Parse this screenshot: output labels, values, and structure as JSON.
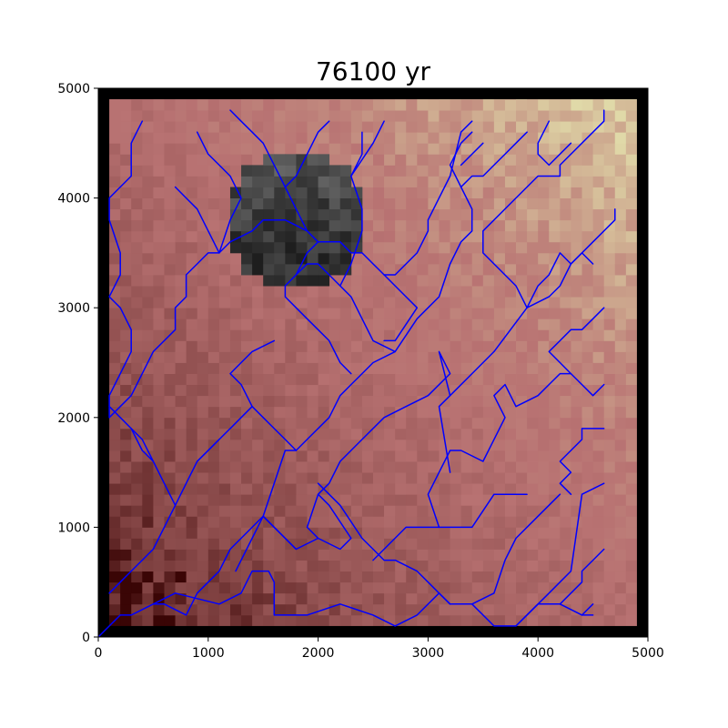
{
  "chart_data": {
    "type": "heatmap",
    "title": "76100 yr",
    "xlabel": "",
    "ylabel": "",
    "xlim": [
      0,
      5000
    ],
    "ylim": [
      0,
      5000
    ],
    "x_ticks": [
      "0",
      "1000",
      "2000",
      "3000",
      "4000",
      "5000"
    ],
    "y_ticks": [
      "0",
      "1000",
      "2000",
      "3000",
      "4000",
      "5000"
    ],
    "grid": false,
    "cell_size": 100,
    "boundary_color": "#000000",
    "stream_color": "#0000ff",
    "terrain_colors": {
      "low": "#3a0505",
      "mid": "#b87272",
      "high": "#e0d9a8"
    },
    "lake": {
      "color_light": "#6e6e6e",
      "color_dark": "#1e1e1e",
      "center": [
        1800,
        3800
      ],
      "radius": 650
    },
    "streams": [
      [
        [
          0,
          0
        ],
        [
          200,
          200
        ],
        [
          300,
          200
        ],
        [
          500,
          300
        ],
        [
          700,
          400
        ],
        [
          900,
          350
        ],
        [
          1100,
          300
        ],
        [
          1300,
          400
        ],
        [
          1400,
          600
        ],
        [
          1550,
          600
        ],
        [
          1600,
          500
        ],
        [
          1600,
          200
        ],
        [
          1700,
          200
        ],
        [
          1900,
          200
        ],
        [
          2200,
          300
        ],
        [
          2500,
          200
        ],
        [
          2700,
          100
        ],
        [
          2900,
          200
        ],
        [
          3100,
          400
        ],
        [
          3200,
          300
        ],
        [
          3400,
          300
        ],
        [
          3600,
          100
        ],
        [
          3800,
          100
        ],
        [
          4000,
          300
        ],
        [
          4200,
          300
        ],
        [
          4400,
          200
        ],
        [
          4500,
          200
        ]
      ],
      [
        [
          4400,
          200
        ],
        [
          4500,
          300
        ]
      ],
      [
        [
          4200,
          300
        ],
        [
          4400,
          500
        ],
        [
          4400,
          600
        ],
        [
          4500,
          700
        ],
        [
          4600,
          800
        ]
      ],
      [
        [
          3800,
          100
        ],
        [
          4100,
          400
        ],
        [
          4300,
          600
        ],
        [
          4400,
          1300
        ],
        [
          4600,
          1400
        ]
      ],
      [
        [
          4300,
          1300
        ],
        [
          4200,
          1400
        ],
        [
          4300,
          1500
        ],
        [
          4200,
          1600
        ],
        [
          4300,
          1700
        ],
        [
          4400,
          1800
        ],
        [
          4400,
          1900
        ],
        [
          4600,
          1900
        ]
      ],
      [
        [
          3400,
          300
        ],
        [
          3600,
          400
        ],
        [
          3700,
          700
        ],
        [
          3800,
          900
        ],
        [
          4000,
          1100
        ],
        [
          4200,
          1300
        ]
      ],
      [
        [
          3200,
          300
        ],
        [
          3100,
          400
        ],
        [
          3000,
          500
        ],
        [
          2900,
          600
        ],
        [
          2700,
          700
        ],
        [
          2600,
          700
        ],
        [
          2500,
          800
        ],
        [
          2400,
          900
        ],
        [
          2200,
          1200
        ],
        [
          2100,
          1300
        ],
        [
          2000,
          1400
        ]
      ],
      [
        [
          2500,
          700
        ],
        [
          2600,
          800
        ],
        [
          2800,
          1000
        ],
        [
          2900,
          1000
        ],
        [
          3100,
          1000
        ],
        [
          3400,
          1000
        ],
        [
          3600,
          1300
        ],
        [
          3900,
          1300
        ]
      ],
      [
        [
          3100,
          1000
        ],
        [
          3000,
          1300
        ],
        [
          3100,
          1500
        ],
        [
          3200,
          1700
        ],
        [
          3300,
          1700
        ],
        [
          3500,
          1600
        ],
        [
          3600,
          1800
        ],
        [
          3700,
          2000
        ],
        [
          3600,
          2200
        ],
        [
          3700,
          2300
        ],
        [
          3800,
          2100
        ],
        [
          4000,
          2200
        ],
        [
          4100,
          2300
        ],
        [
          4200,
          2400
        ],
        [
          4300,
          2400
        ],
        [
          4400,
          2300
        ],
        [
          4500,
          2200
        ],
        [
          4600,
          2300
        ]
      ],
      [
        [
          4300,
          2400
        ],
        [
          4200,
          2500
        ],
        [
          4100,
          2600
        ],
        [
          4200,
          2700
        ],
        [
          4300,
          2800
        ],
        [
          4400,
          2800
        ],
        [
          4500,
          2900
        ],
        [
          4600,
          3000
        ]
      ],
      [
        [
          3200,
          1500
        ],
        [
          3100,
          2100
        ],
        [
          3200,
          2200
        ],
        [
          3400,
          2400
        ],
        [
          3600,
          2600
        ],
        [
          3900,
          3000
        ],
        [
          4100,
          3100
        ],
        [
          4200,
          3200
        ],
        [
          4300,
          3400
        ],
        [
          4500,
          3600
        ],
        [
          4700,
          3800
        ],
        [
          4700,
          3900
        ]
      ],
      [
        [
          3900,
          3000
        ],
        [
          4000,
          3200
        ],
        [
          4100,
          3300
        ],
        [
          4200,
          3500
        ],
        [
          4300,
          3400
        ],
        [
          4400,
          3500
        ],
        [
          4500,
          3400
        ]
      ],
      [
        [
          3900,
          3000
        ],
        [
          3800,
          3200
        ],
        [
          3600,
          3400
        ],
        [
          3500,
          3500
        ],
        [
          3500,
          3700
        ],
        [
          3800,
          4000
        ],
        [
          4000,
          4200
        ],
        [
          4200,
          4200
        ],
        [
          4200,
          4300
        ],
        [
          4400,
          4500
        ],
        [
          4600,
          4700
        ],
        [
          4600,
          4800
        ]
      ],
      [
        [
          4300,
          4500
        ],
        [
          4100,
          4300
        ],
        [
          4000,
          4400
        ],
        [
          4000,
          4500
        ],
        [
          4100,
          4700
        ]
      ],
      [
        [
          3200,
          2200
        ],
        [
          3100,
          2600
        ],
        [
          3200,
          2400
        ],
        [
          3000,
          2200
        ],
        [
          2800,
          2100
        ],
        [
          2600,
          2000
        ],
        [
          2400,
          1800
        ],
        [
          2300,
          1700
        ],
        [
          2200,
          1600
        ],
        [
          2100,
          1400
        ],
        [
          2000,
          1300
        ],
        [
          1900,
          1000
        ],
        [
          2000,
          900
        ],
        [
          1800,
          800
        ],
        [
          1700,
          900
        ],
        [
          1500,
          1100
        ],
        [
          1400,
          1000
        ],
        [
          1300,
          900
        ],
        [
          1200,
          800
        ],
        [
          1100,
          600
        ],
        [
          1000,
          500
        ],
        [
          900,
          400
        ],
        [
          800,
          200
        ],
        [
          600,
          300
        ],
        [
          500,
          300
        ]
      ],
      [
        [
          2000,
          1300
        ],
        [
          2100,
          1200
        ],
        [
          2300,
          900
        ],
        [
          2200,
          800
        ],
        [
          2000,
          900
        ]
      ],
      [
        [
          1800,
          800
        ],
        [
          1600,
          1000
        ],
        [
          1500,
          1100
        ],
        [
          1400,
          900
        ],
        [
          1300,
          700
        ],
        [
          1250,
          600
        ]
      ],
      [
        [
          1500,
          1100
        ],
        [
          1600,
          1400
        ],
        [
          1700,
          1700
        ],
        [
          1800,
          1700
        ],
        [
          1900,
          1800
        ],
        [
          2100,
          2000
        ],
        [
          2200,
          2200
        ],
        [
          2300,
          2300
        ],
        [
          2400,
          2400
        ],
        [
          2500,
          2500
        ],
        [
          2700,
          2600
        ],
        [
          2900,
          2900
        ],
        [
          3000,
          3000
        ],
        [
          3100,
          3100
        ],
        [
          3200,
          3400
        ],
        [
          3300,
          3600
        ],
        [
          3400,
          3700
        ],
        [
          3400,
          3900
        ],
        [
          3300,
          4100
        ],
        [
          3200,
          4300
        ],
        [
          3300,
          4500
        ],
        [
          3400,
          4600
        ]
      ],
      [
        [
          3300,
          4100
        ],
        [
          3400,
          4200
        ],
        [
          3500,
          4200
        ],
        [
          3600,
          4300
        ],
        [
          3700,
          4400
        ],
        [
          3800,
          4500
        ],
        [
          3900,
          4600
        ]
      ],
      [
        [
          3300,
          4300
        ],
        [
          3400,
          4400
        ],
        [
          3500,
          4500
        ]
      ],
      [
        [
          2700,
          2600
        ],
        [
          2500,
          2700
        ],
        [
          2400,
          2900
        ],
        [
          2300,
          3100
        ],
        [
          2200,
          3200
        ],
        [
          2100,
          3300
        ],
        [
          2000,
          3400
        ],
        [
          1900,
          3400
        ],
        [
          1800,
          3300
        ],
        [
          1700,
          3200
        ],
        [
          1700,
          3100
        ],
        [
          1800,
          3000
        ],
        [
          1900,
          2900
        ],
        [
          2000,
          2800
        ],
        [
          2100,
          2700
        ],
        [
          2200,
          2500
        ],
        [
          2300,
          2400
        ]
      ],
      [
        [
          1800,
          3300
        ],
        [
          1900,
          3500
        ],
        [
          2000,
          3600
        ],
        [
          2100,
          3600
        ],
        [
          2200,
          3600
        ],
        [
          2300,
          3500
        ],
        [
          2400,
          3500
        ],
        [
          2500,
          3400
        ],
        [
          2600,
          3300
        ],
        [
          2700,
          3300
        ],
        [
          2800,
          3400
        ],
        [
          2900,
          3500
        ],
        [
          3000,
          3700
        ],
        [
          3000,
          3800
        ],
        [
          3100,
          4000
        ],
        [
          3200,
          4200
        ],
        [
          3300,
          4600
        ],
        [
          3400,
          4700
        ]
      ],
      [
        [
          2600,
          3300
        ],
        [
          2700,
          3200
        ],
        [
          2800,
          3100
        ],
        [
          2900,
          3000
        ],
        [
          2700,
          2700
        ],
        [
          2600,
          2700
        ]
      ],
      [
        [
          2200,
          3200
        ],
        [
          2300,
          3400
        ],
        [
          2400,
          3700
        ],
        [
          2400,
          3900
        ],
        [
          2300,
          4200
        ],
        [
          2500,
          4500
        ],
        [
          2600,
          4700
        ]
      ],
      [
        [
          2300,
          4200
        ],
        [
          2400,
          4400
        ],
        [
          2400,
          4600
        ]
      ],
      [
        [
          2000,
          3600
        ],
        [
          1900,
          3700
        ],
        [
          1800,
          3900
        ],
        [
          1700,
          4100
        ],
        [
          1600,
          4300
        ],
        [
          1500,
          4500
        ],
        [
          1400,
          4600
        ],
        [
          1300,
          4700
        ],
        [
          1200,
          4800
        ]
      ],
      [
        [
          1700,
          4100
        ],
        [
          1800,
          4200
        ],
        [
          1900,
          4400
        ],
        [
          2000,
          4600
        ],
        [
          2100,
          4700
        ]
      ],
      [
        [
          1900,
          3700
        ],
        [
          1700,
          3800
        ],
        [
          1500,
          3800
        ],
        [
          1400,
          3700
        ],
        [
          1200,
          3600
        ],
        [
          1100,
          3500
        ],
        [
          1000,
          3500
        ],
        [
          900,
          3400
        ],
        [
          800,
          3300
        ],
        [
          800,
          3100
        ],
        [
          700,
          3000
        ],
        [
          700,
          2800
        ],
        [
          600,
          2700
        ],
        [
          500,
          2600
        ],
        [
          400,
          2400
        ],
        [
          300,
          2200
        ],
        [
          200,
          2100
        ],
        [
          100,
          2000
        ],
        [
          100,
          2200
        ],
        [
          200,
          2400
        ],
        [
          300,
          2600
        ],
        [
          300,
          2800
        ],
        [
          200,
          3000
        ],
        [
          100,
          3100
        ],
        [
          200,
          3300
        ],
        [
          200,
          3500
        ],
        [
          100,
          3800
        ],
        [
          100,
          4000
        ],
        [
          200,
          4100
        ],
        [
          300,
          4200
        ],
        [
          300,
          4400
        ],
        [
          300,
          4500
        ],
        [
          400,
          4700
        ]
      ],
      [
        [
          1100,
          3500
        ],
        [
          1200,
          3800
        ],
        [
          1300,
          4000
        ],
        [
          1200,
          4200
        ],
        [
          1100,
          4300
        ],
        [
          1000,
          4400
        ],
        [
          900,
          4600
        ]
      ],
      [
        [
          1100,
          3500
        ],
        [
          1000,
          3700
        ],
        [
          900,
          3900
        ],
        [
          800,
          4000
        ],
        [
          700,
          4100
        ]
      ],
      [
        [
          1600,
          2700
        ],
        [
          1400,
          2600
        ],
        [
          1300,
          2500
        ],
        [
          1200,
          2400
        ],
        [
          1300,
          2300
        ],
        [
          1400,
          2100
        ],
        [
          1500,
          2000
        ],
        [
          1600,
          1900
        ],
        [
          1700,
          1800
        ],
        [
          1800,
          1700
        ]
      ],
      [
        [
          1400,
          2100
        ],
        [
          1300,
          2000
        ],
        [
          1200,
          1900
        ],
        [
          1100,
          1800
        ],
        [
          1000,
          1700
        ],
        [
          900,
          1600
        ],
        [
          800,
          1400
        ],
        [
          700,
          1200
        ],
        [
          600,
          1000
        ],
        [
          500,
          800
        ],
        [
          400,
          700
        ],
        [
          300,
          600
        ],
        [
          200,
          500
        ],
        [
          100,
          400
        ]
      ],
      [
        [
          900,
          1600
        ],
        [
          1000,
          1700
        ],
        [
          1100,
          1800
        ]
      ],
      [
        [
          700,
          1200
        ],
        [
          600,
          1400
        ],
        [
          500,
          1600
        ],
        [
          400,
          1800
        ],
        [
          300,
          1900
        ],
        [
          200,
          2000
        ],
        [
          100,
          2100
        ]
      ],
      [
        [
          500,
          1600
        ],
        [
          400,
          1700
        ],
        [
          300,
          1900
        ]
      ]
    ]
  }
}
